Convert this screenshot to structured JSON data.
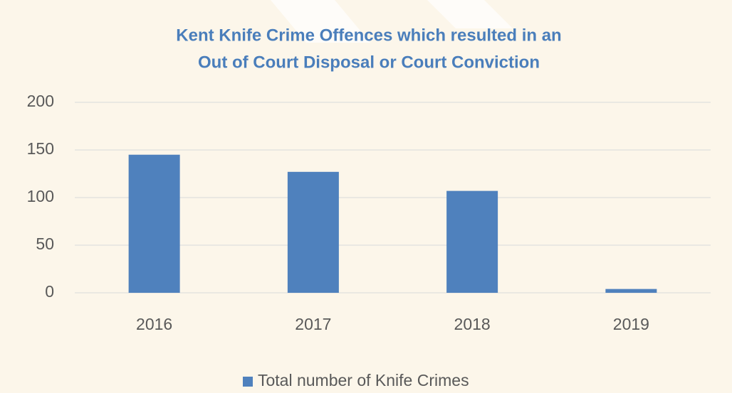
{
  "chart_data": {
    "type": "bar",
    "title": [
      "Kent Knife Crime Offences which resulted in an",
      "Out of Court Disposal or Court Conviction"
    ],
    "categories": [
      "2016",
      "2017",
      "2018",
      "2019"
    ],
    "series": [
      {
        "name": "Total number of Knife Crimes",
        "color": "#4f81bd",
        "values": [
          145,
          127,
          107,
          4
        ]
      }
    ],
    "ylim": [
      0,
      200
    ],
    "yticks": [
      0,
      50,
      100,
      150,
      200
    ],
    "grid": true,
    "legend": "bottom"
  }
}
